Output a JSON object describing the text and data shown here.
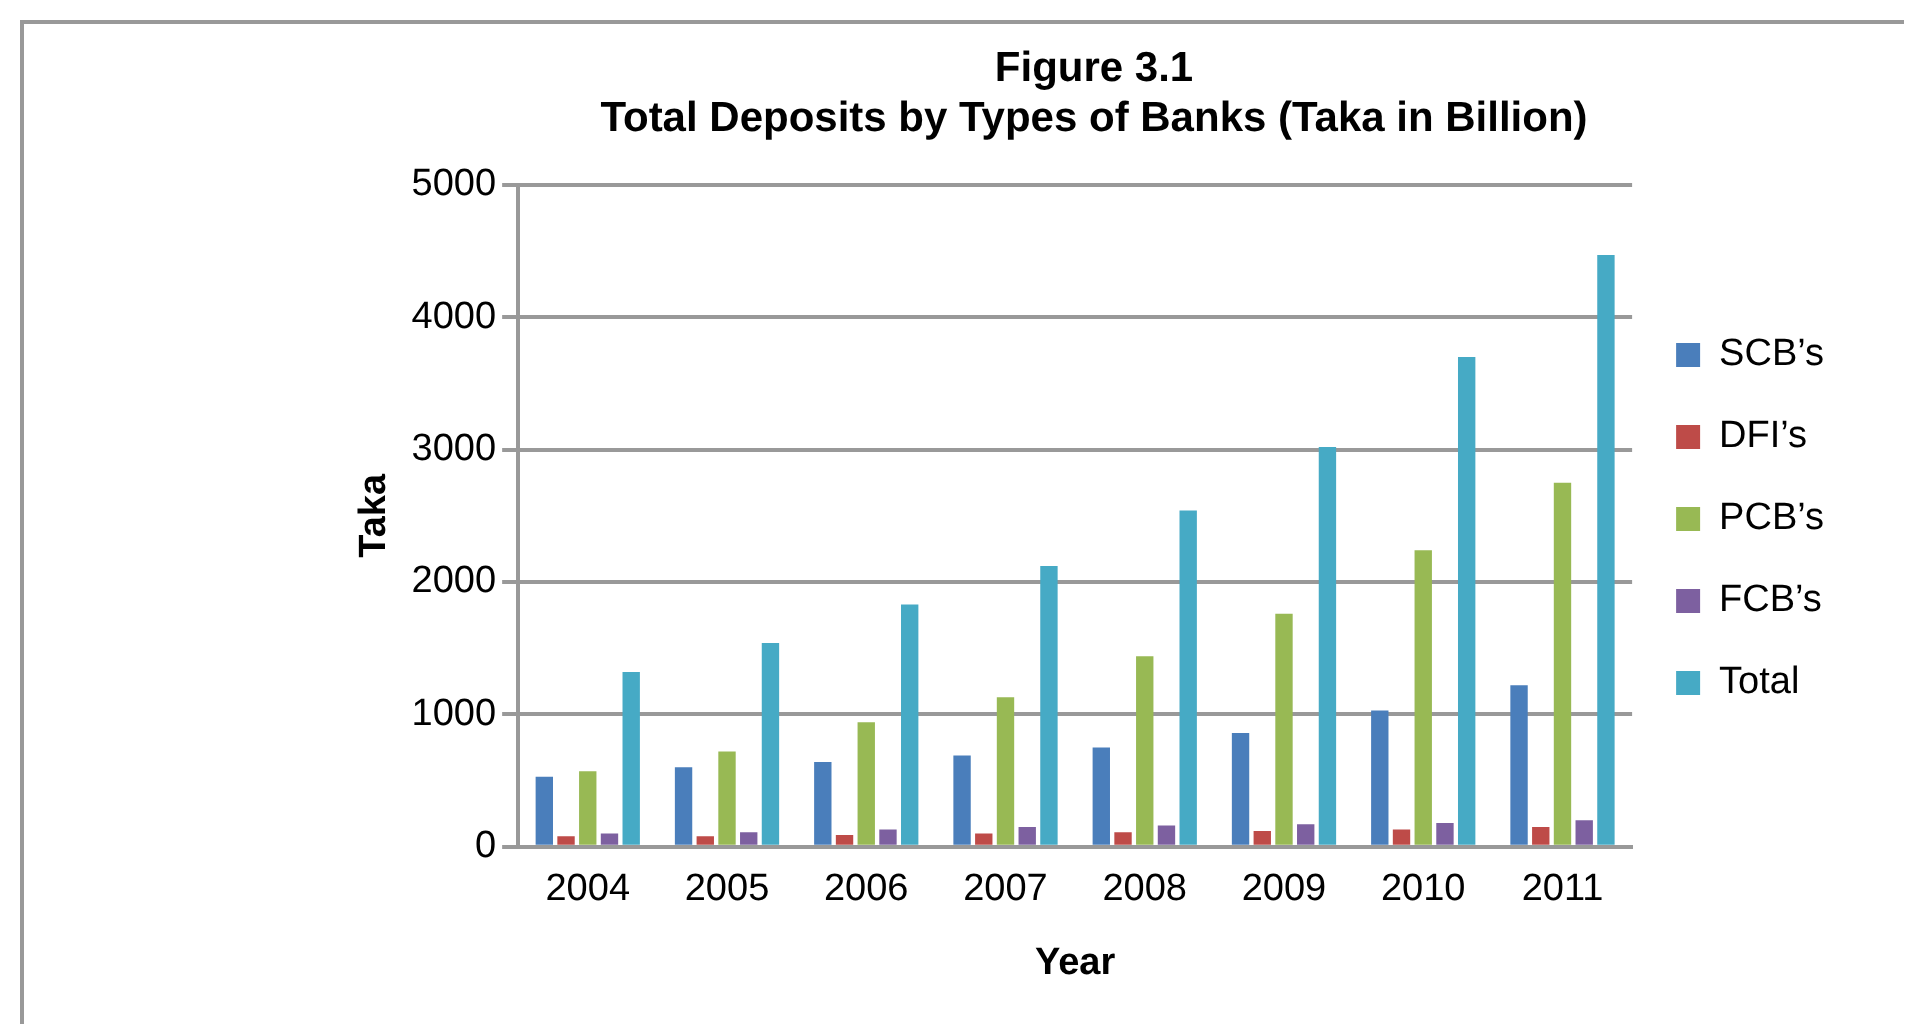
{
  "chart_data": {
    "type": "bar",
    "title": "Figure 3.1",
    "subtitle": "Total Deposits by Types of Banks (Taka in Billion)",
    "xlabel": "Year",
    "ylabel": "Taka",
    "categories": [
      "2004",
      "2005",
      "2006",
      "2007",
      "2008",
      "2009",
      "2010",
      "2011"
    ],
    "series": [
      {
        "name": "SCB’s",
        "color": "#4a7ebb",
        "values": [
          530,
          600,
          640,
          690,
          750,
          860,
          1030,
          1220
        ]
      },
      {
        "name": "DFI’s",
        "color": "#be4b48",
        "values": [
          80,
          80,
          90,
          100,
          110,
          120,
          130,
          150
        ]
      },
      {
        "name": "PCB’s",
        "color": "#98b954",
        "values": [
          570,
          720,
          940,
          1130,
          1440,
          1760,
          2240,
          2750
        ]
      },
      {
        "name": "FCB’s",
        "color": "#7d60a0",
        "values": [
          100,
          110,
          130,
          150,
          160,
          170,
          180,
          200
        ]
      },
      {
        "name": "Total",
        "color": "#46aac5",
        "values": [
          1320,
          1540,
          1830,
          2120,
          2540,
          3020,
          3700,
          4470
        ]
      }
    ],
    "ylim": [
      0,
      5000
    ],
    "yticks": [
      0,
      1000,
      2000,
      3000,
      4000,
      5000
    ],
    "grid": "y",
    "legend": "right"
  }
}
